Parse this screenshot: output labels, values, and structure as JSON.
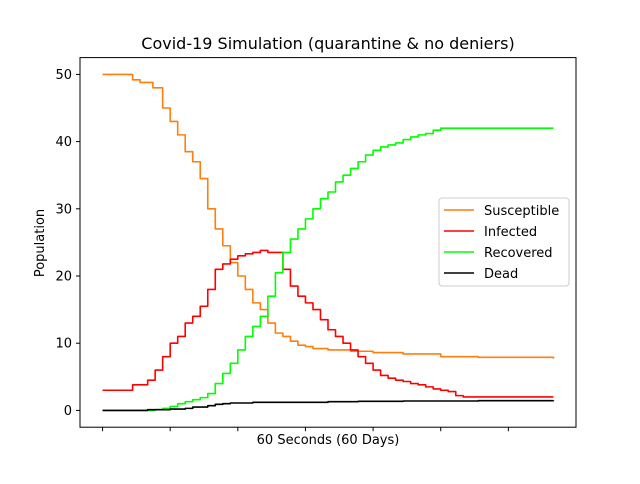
{
  "chart_data": {
    "type": "line",
    "title": "Covid-19 Simulation (quarantine & no deniers)",
    "xlabel": "60 Seconds (60 Days)",
    "ylabel": "Population",
    "xlim": [
      -3,
      63
    ],
    "ylim": [
      -2.5,
      52.5
    ],
    "x_ticks": [
      0,
      9,
      18,
      27,
      36,
      45,
      54
    ],
    "x_tick_labels_shown": false,
    "y_ticks": [
      0,
      10,
      20,
      30,
      40,
      50
    ],
    "y_tick_labels": [
      "0",
      "10",
      "20",
      "30",
      "40",
      "50"
    ],
    "grid": false,
    "legend_position": "center-right",
    "series": [
      {
        "name": "Susceptible",
        "color": "#ff7f0e",
        "points": [
          [
            0,
            50
          ],
          [
            3,
            50
          ],
          [
            4,
            49.2
          ],
          [
            5,
            48.8
          ],
          [
            6.7,
            48
          ],
          [
            8,
            45
          ],
          [
            9,
            43
          ],
          [
            10,
            41
          ],
          [
            11,
            38.5
          ],
          [
            12,
            37
          ],
          [
            13,
            34.5
          ],
          [
            14,
            30
          ],
          [
            15,
            27
          ],
          [
            16,
            24.5
          ],
          [
            17,
            22
          ],
          [
            18,
            20
          ],
          [
            19,
            18
          ],
          [
            20,
            16
          ],
          [
            21,
            15
          ],
          [
            22,
            13
          ],
          [
            23,
            11.5
          ],
          [
            24,
            11
          ],
          [
            25,
            10.3
          ],
          [
            26,
            9.7
          ],
          [
            27,
            9.5
          ],
          [
            28,
            9.2
          ],
          [
            30,
            9
          ],
          [
            33,
            8.8
          ],
          [
            36,
            8.6
          ],
          [
            40,
            8.4
          ],
          [
            45,
            8
          ],
          [
            50,
            7.9
          ],
          [
            60,
            7.7
          ]
        ]
      },
      {
        "name": "Infected",
        "color": "#ff0000",
        "points": [
          [
            0,
            3
          ],
          [
            3,
            3
          ],
          [
            4,
            3.8
          ],
          [
            6,
            4.5
          ],
          [
            7,
            6
          ],
          [
            8,
            8
          ],
          [
            9,
            10
          ],
          [
            10,
            11
          ],
          [
            11,
            13
          ],
          [
            12,
            14
          ],
          [
            13,
            15.5
          ],
          [
            14,
            18
          ],
          [
            15,
            21
          ],
          [
            16,
            21.8
          ],
          [
            17,
            22.5
          ],
          [
            18,
            23
          ],
          [
            19,
            23.3
          ],
          [
            20,
            23.5
          ],
          [
            21,
            23.8
          ],
          [
            22,
            23.5
          ],
          [
            23,
            23.5
          ],
          [
            24,
            21
          ],
          [
            25,
            18.5
          ],
          [
            26,
            17
          ],
          [
            27,
            16
          ],
          [
            28,
            15
          ],
          [
            29,
            13.5
          ],
          [
            30,
            12
          ],
          [
            31,
            11
          ],
          [
            32,
            10
          ],
          [
            33,
            9
          ],
          [
            34,
            8
          ],
          [
            35,
            7
          ],
          [
            36,
            6
          ],
          [
            37,
            5.2
          ],
          [
            38,
            4.8
          ],
          [
            39,
            4.5
          ],
          [
            40,
            4.3
          ],
          [
            41,
            4
          ],
          [
            42,
            3.8
          ],
          [
            43,
            3.5
          ],
          [
            44,
            3.2
          ],
          [
            45,
            3
          ],
          [
            46,
            2.8
          ],
          [
            47,
            2.2
          ],
          [
            48,
            2
          ],
          [
            50,
            2
          ],
          [
            60,
            2
          ]
        ]
      },
      {
        "name": "Recovered",
        "color": "#00ff00",
        "points": [
          [
            0,
            0
          ],
          [
            7,
            0.1
          ],
          [
            8,
            0.3
          ],
          [
            9,
            0.6
          ],
          [
            10,
            1
          ],
          [
            11,
            1.3
          ],
          [
            12,
            1.6
          ],
          [
            13,
            1.9
          ],
          [
            14,
            2.5
          ],
          [
            15,
            4
          ],
          [
            16,
            5.5
          ],
          [
            17,
            7
          ],
          [
            18,
            9
          ],
          [
            19,
            11
          ],
          [
            20,
            12.5
          ],
          [
            21,
            14
          ],
          [
            22,
            17
          ],
          [
            23,
            20.5
          ],
          [
            24,
            23.5
          ],
          [
            25,
            25.5
          ],
          [
            26,
            27
          ],
          [
            27,
            28.5
          ],
          [
            28,
            30
          ],
          [
            29,
            31.5
          ],
          [
            30,
            32.5
          ],
          [
            31,
            34
          ],
          [
            32,
            35
          ],
          [
            33,
            36
          ],
          [
            34,
            37
          ],
          [
            35,
            38
          ],
          [
            36,
            38.7
          ],
          [
            37,
            39.2
          ],
          [
            38,
            39.5
          ],
          [
            39,
            39.8
          ],
          [
            40,
            40.3
          ],
          [
            41,
            40.7
          ],
          [
            42,
            41
          ],
          [
            43,
            41.2
          ],
          [
            44,
            41.7
          ],
          [
            45,
            42
          ],
          [
            50,
            42
          ],
          [
            60,
            42
          ]
        ]
      },
      {
        "name": "Dead",
        "color": "#000000",
        "points": [
          [
            0,
            0
          ],
          [
            4,
            0
          ],
          [
            6,
            0.1
          ],
          [
            9,
            0.2
          ],
          [
            11,
            0.3
          ],
          [
            12,
            0.5
          ],
          [
            14,
            0.7
          ],
          [
            15,
            0.9
          ],
          [
            16,
            1
          ],
          [
            17,
            1.1
          ],
          [
            20,
            1.2
          ],
          [
            30,
            1.3
          ],
          [
            34,
            1.35
          ],
          [
            40,
            1.4
          ],
          [
            50,
            1.45
          ],
          [
            60,
            1.5
          ]
        ]
      }
    ]
  }
}
